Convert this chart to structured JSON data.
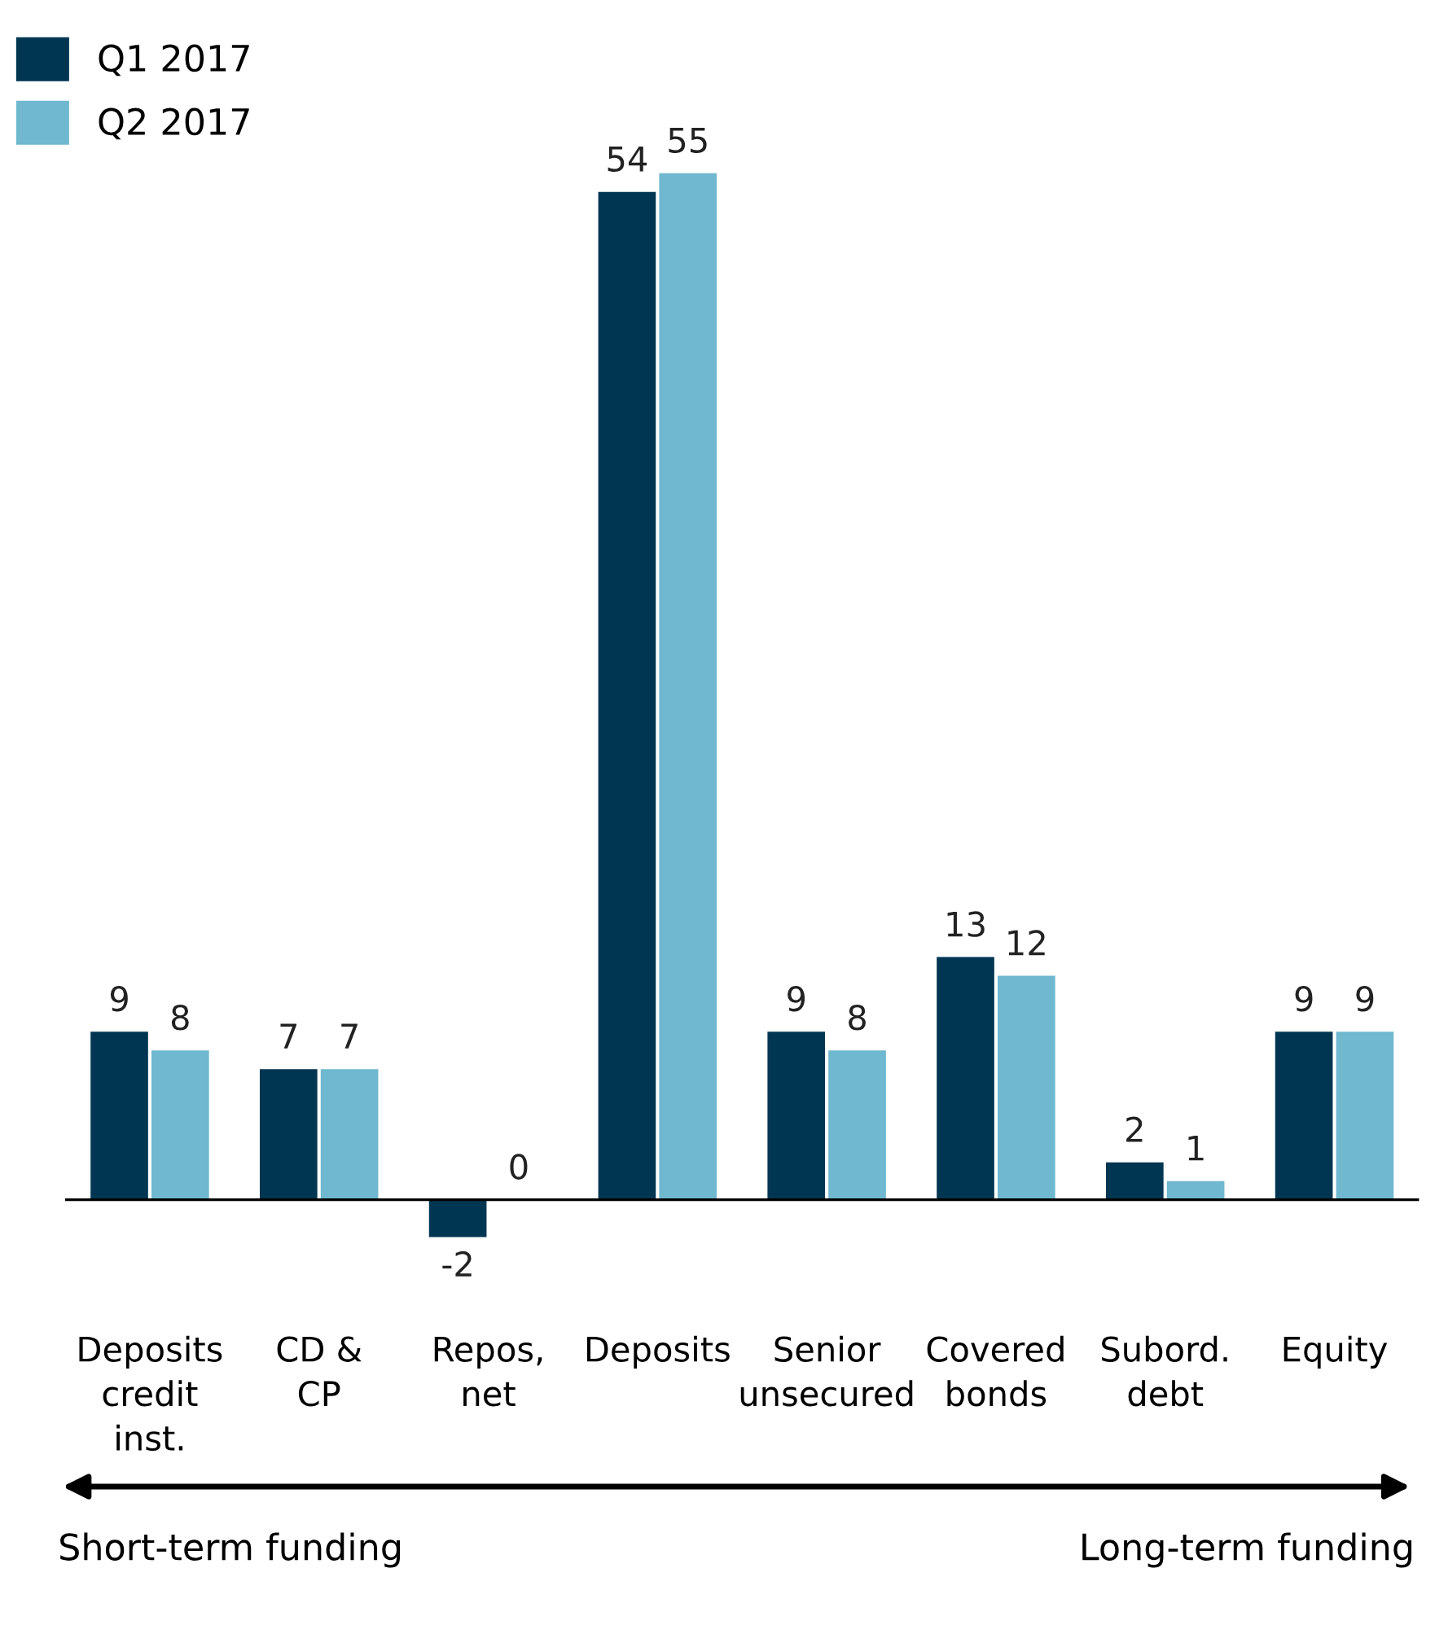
{
  "chart_data": {
    "type": "bar",
    "categories": [
      "Deposits\ncredit\ninst.",
      "CD &\nCP",
      "Repos,\nnet",
      "Deposits",
      "Senior\nunsecured",
      "Covered\nbonds",
      "Subord.\ndebt",
      "Equity"
    ],
    "series": [
      {
        "name": "Q1 2017",
        "color": "#003652",
        "values": [
          9,
          7,
          -2,
          54,
          9,
          13,
          2,
          9
        ]
      },
      {
        "name": "Q2 2017",
        "color": "#6fb8cf",
        "values": [
          8,
          7,
          0,
          55,
          8,
          12,
          1,
          9
        ]
      }
    ],
    "data_labels": true,
    "legend": "top left",
    "grid": false,
    "annotations": [
      "Short-term funding",
      "Long-term funding"
    ]
  }
}
